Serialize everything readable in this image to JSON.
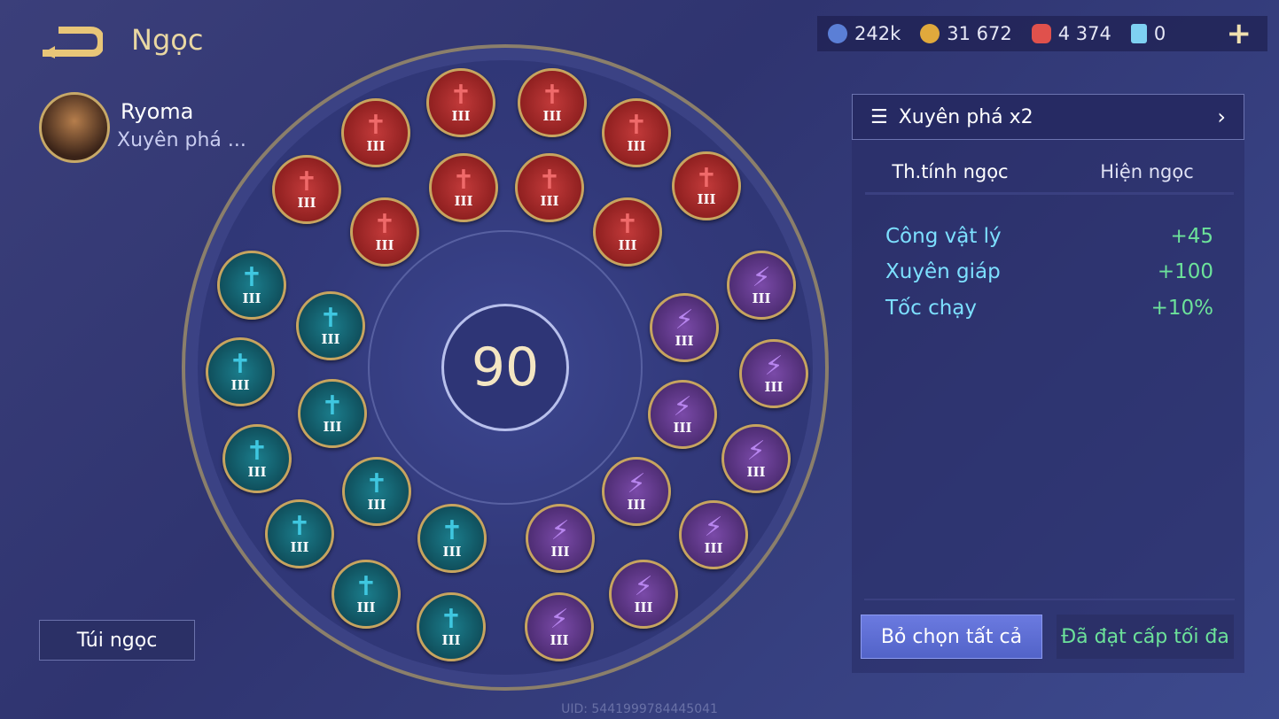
{
  "header": {
    "title": "Ngọc",
    "back_icon": "back-arrow-icon"
  },
  "player": {
    "name": "Ryoma",
    "set_name": "Xuyên phá ..."
  },
  "currencies": [
    {
      "icon": "silver-coin-icon",
      "value": "242k",
      "color": "#5b7fd6"
    },
    {
      "icon": "gold-coin-icon",
      "value": "31 672",
      "color": "#e0a93c"
    },
    {
      "icon": "red-gem-icon",
      "value": "4 374",
      "color": "#e0514c"
    },
    {
      "icon": "card-icon",
      "value": "0",
      "color": "#7ed0f2"
    }
  ],
  "add_label": "+",
  "level": "90",
  "gems": {
    "red": {
      "label": "III",
      "count": 10,
      "color": "#c23a3a"
    },
    "teal": {
      "label": "III",
      "count": 10,
      "color": "#1b7d8c"
    },
    "purple": {
      "label": "III",
      "count": 10,
      "color": "#7a4aa8"
    }
  },
  "bag_button": "Túi ngọc",
  "panel": {
    "set_selector": "Xuyên phá x2",
    "tabs": [
      "Th.tính ngọc",
      "Hiện ngọc"
    ],
    "active_tab": 0,
    "stats": [
      {
        "name": "Công vật lý",
        "value": "+45"
      },
      {
        "name": "Xuyên giáp",
        "value": "+100"
      },
      {
        "name": "Tốc chạy",
        "value": "+10%"
      }
    ],
    "deselect_all": "Bỏ chọn tất cả",
    "max_level": "Đã đạt cấp tối đa"
  },
  "uid": "UID: 5441999784445041"
}
